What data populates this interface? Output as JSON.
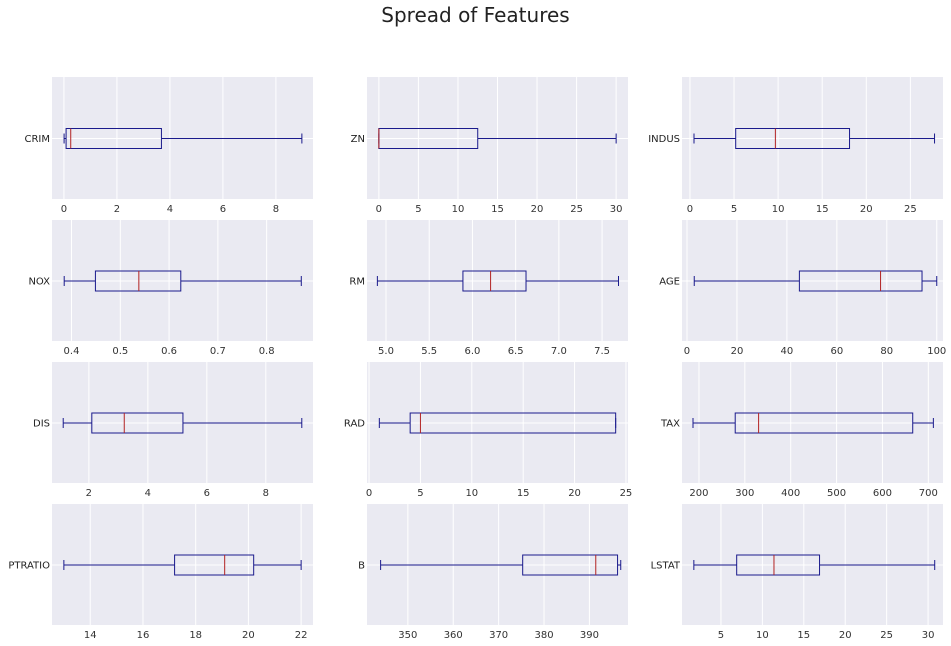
{
  "title": "Spread of Features",
  "colors": {
    "panel_bg": "#eaeaf2",
    "grid": "#ffffff",
    "box": "#1a1a8c",
    "median": "#b22222",
    "axis_text": "#333333"
  },
  "chart_data": {
    "type": "box",
    "title": "Spread of Features",
    "grid": true,
    "orientation": "horizontal",
    "panels": [
      {
        "label": "CRIM",
        "xlim": [
          -0.45,
          9.4
        ],
        "ticks": [
          0,
          2,
          4,
          6,
          8
        ],
        "tick_labels": [
          "0",
          "2",
          "4",
          "6",
          "8"
        ],
        "whisker_low": 0.006,
        "q1": 0.082,
        "median": 0.257,
        "q3": 3.68,
        "whisker_high": 8.98
      },
      {
        "label": "ZN",
        "xlim": [
          -1.5,
          31.5
        ],
        "ticks": [
          0,
          5,
          10,
          15,
          20,
          25,
          30
        ],
        "tick_labels": [
          "0",
          "5",
          "10",
          "15",
          "20",
          "25",
          "30"
        ],
        "whisker_low": 0,
        "q1": 0,
        "median": 0,
        "q3": 12.5,
        "whisker_high": 30
      },
      {
        "label": "INDUS",
        "xlim": [
          -0.9,
          28.7
        ],
        "ticks": [
          0,
          5,
          10,
          15,
          20,
          25
        ],
        "tick_labels": [
          "0",
          "5",
          "10",
          "15",
          "20",
          "25"
        ],
        "whisker_low": 0.46,
        "q1": 5.19,
        "median": 9.69,
        "q3": 18.1,
        "whisker_high": 27.74
      },
      {
        "label": "NOX",
        "xlim": [
          0.36,
          0.895
        ],
        "ticks": [
          0.4,
          0.5,
          0.6,
          0.7,
          0.8
        ],
        "tick_labels": [
          "0.4",
          "0.5",
          "0.6",
          "0.7",
          "0.8"
        ],
        "whisker_low": 0.385,
        "q1": 0.449,
        "median": 0.538,
        "q3": 0.624,
        "whisker_high": 0.871
      },
      {
        "label": "RM",
        "xlim": [
          4.78,
          7.8
        ],
        "ticks": [
          5.0,
          5.5,
          6.0,
          6.5,
          7.0,
          7.5
        ],
        "tick_labels": [
          "5.0",
          "5.5",
          "6.0",
          "6.5",
          "7.0",
          "7.5"
        ],
        "whisker_low": 4.9,
        "q1": 5.89,
        "median": 6.21,
        "q3": 6.62,
        "whisker_high": 7.69
      },
      {
        "label": "AGE",
        "xlim": [
          -2.0,
          102.5
        ],
        "ticks": [
          0,
          20,
          40,
          60,
          80,
          100
        ],
        "tick_labels": [
          "0",
          "20",
          "40",
          "60",
          "80",
          "100"
        ],
        "whisker_low": 2.9,
        "q1": 45.0,
        "median": 77.5,
        "q3": 94.1,
        "whisker_high": 100
      },
      {
        "label": "DIS",
        "xlim": [
          0.75,
          9.6
        ],
        "ticks": [
          2,
          4,
          6,
          8
        ],
        "tick_labels": [
          "2",
          "4",
          "6",
          "8"
        ],
        "whisker_low": 1.13,
        "q1": 2.1,
        "median": 3.2,
        "q3": 5.19,
        "whisker_high": 9.22
      },
      {
        "label": "RAD",
        "xlim": [
          -0.2,
          25.2
        ],
        "ticks": [
          0,
          5,
          10,
          15,
          20,
          25
        ],
        "tick_labels": [
          "0",
          "5",
          "10",
          "15",
          "20",
          "25"
        ],
        "whisker_low": 1,
        "q1": 4,
        "median": 5,
        "q3": 24,
        "whisker_high": 24
      },
      {
        "label": "TAX",
        "xlim": [
          163,
          732
        ],
        "ticks": [
          200,
          300,
          400,
          500,
          600,
          700
        ],
        "tick_labels": [
          "200",
          "300",
          "400",
          "500",
          "600",
          "700"
        ],
        "whisker_low": 187,
        "q1": 279,
        "median": 330,
        "q3": 666,
        "whisker_high": 711
      },
      {
        "label": "PTRATIO",
        "xlim": [
          12.55,
          22.45
        ],
        "ticks": [
          14,
          16,
          18,
          20,
          22
        ],
        "tick_labels": [
          "14",
          "16",
          "18",
          "20",
          "22"
        ],
        "whisker_low": 13.0,
        "q1": 17.2,
        "median": 19.1,
        "q3": 20.2,
        "whisker_high": 22.0
      },
      {
        "label": "B",
        "xlim": [
          341.0,
          398.5
        ],
        "ticks": [
          350,
          360,
          370,
          380,
          390
        ],
        "tick_labels": [
          "350",
          "360",
          "370",
          "380",
          "390"
        ],
        "whisker_low": 344.0,
        "q1": 375.3,
        "median": 391.4,
        "q3": 396.2,
        "whisker_high": 396.9
      },
      {
        "label": "LSTAT",
        "xlim": [
          0.3,
          31.8
        ],
        "ticks": [
          5,
          10,
          15,
          20,
          25,
          30
        ],
        "tick_labels": [
          "5",
          "10",
          "15",
          "20",
          "25",
          "30"
        ],
        "whisker_low": 1.73,
        "q1": 6.9,
        "median": 11.4,
        "q3": 16.9,
        "whisker_high": 30.8
      }
    ]
  }
}
